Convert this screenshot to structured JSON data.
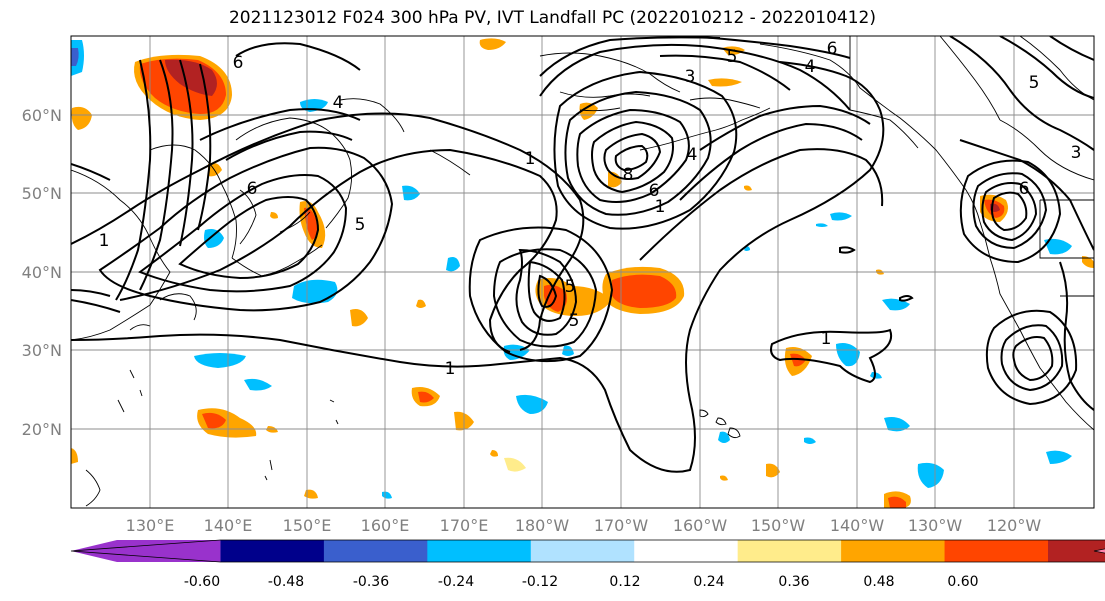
{
  "title": "2021123012 F024 300 hPa PV, IVT Landfall PC (2022010212 - 2022010412)",
  "lat_labels": [
    "60°N",
    "50°N",
    "40°N",
    "30°N",
    "20°N"
  ],
  "lon_labels": [
    "130°E",
    "140°E",
    "150°E",
    "160°E",
    "170°E",
    "180°W",
    "170°W",
    "160°W",
    "150°W",
    "140°W",
    "130°W",
    "120°W"
  ],
  "colorbar": {
    "colors": [
      "#9932cc",
      "#00008b",
      "#3a5fcd",
      "#00bfff",
      "#b0e2ff",
      "#ffffff",
      "#ffec8b",
      "#ffa500",
      "#ff4500",
      "#b22222",
      "#ff82ab"
    ],
    "tick_labels": [
      "-0.60",
      "-0.48",
      "-0.36",
      "-0.24",
      "-0.12",
      "0.12",
      "0.24",
      "0.36",
      "0.48",
      "0.60"
    ]
  },
  "contour_labels": [
    {
      "text": "6"
    },
    {
      "text": "4"
    },
    {
      "text": "6"
    },
    {
      "text": "4"
    },
    {
      "text": "5"
    },
    {
      "text": "1"
    },
    {
      "text": "1"
    },
    {
      "text": "1"
    },
    {
      "text": "6"
    },
    {
      "text": "5"
    },
    {
      "text": "5"
    },
    {
      "text": "5"
    },
    {
      "text": "1"
    },
    {
      "text": "3"
    },
    {
      "text": "8"
    },
    {
      "text": "6"
    },
    {
      "text": "1"
    },
    {
      "text": "4"
    },
    {
      "text": "5"
    },
    {
      "text": "6"
    },
    {
      "text": "3"
    }
  ]
}
